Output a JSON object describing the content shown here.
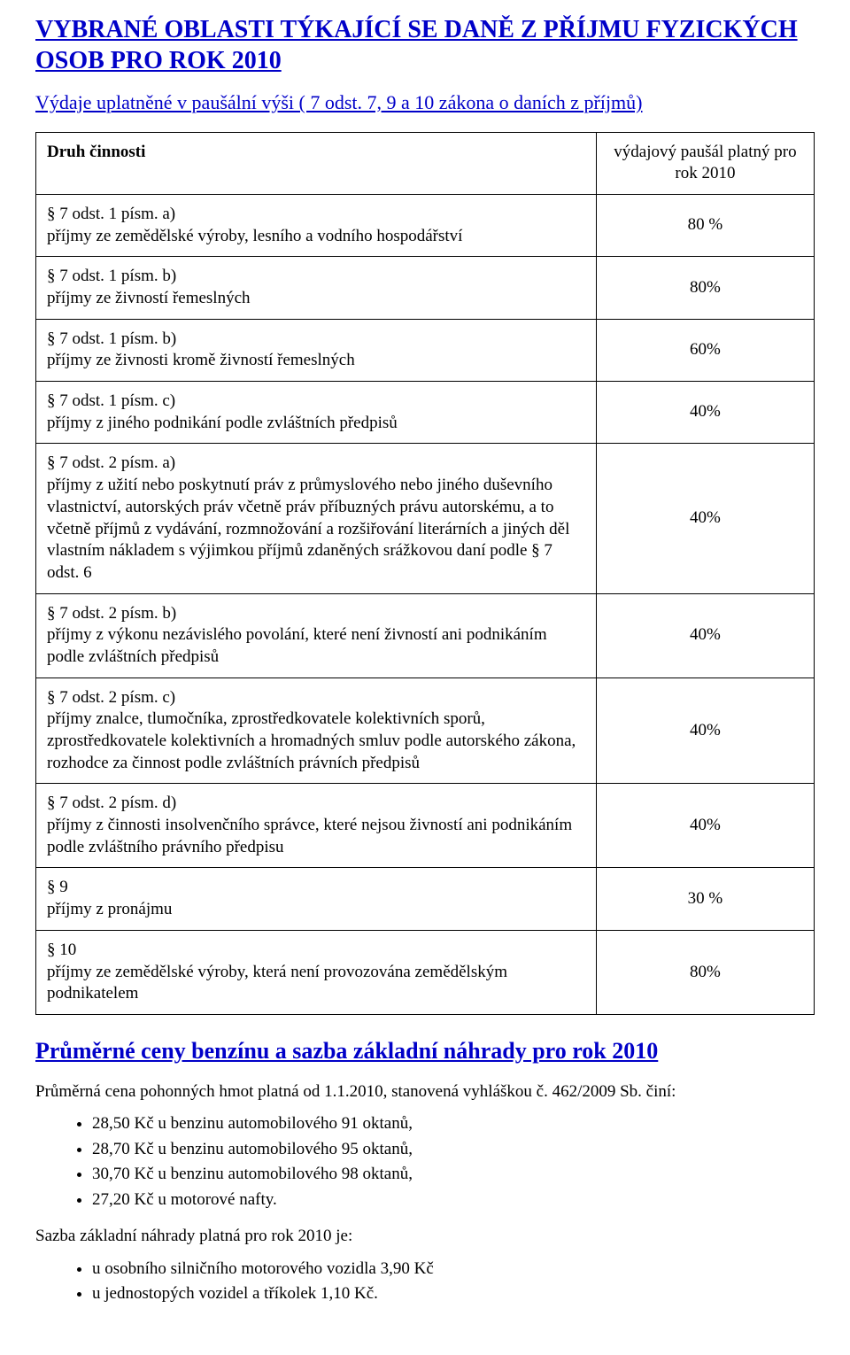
{
  "colors": {
    "heading": "#0000c8",
    "text": "#000000",
    "border": "#000000",
    "background": "#ffffff"
  },
  "typography": {
    "family": "Times New Roman",
    "title_fontsize_pt": 21,
    "subheading_fontsize_pt": 17,
    "section_heading_fontsize_pt": 20,
    "body_fontsize_pt": 14
  },
  "title": "VYBRANÉ OBLASTI TÝKAJÍCÍ SE DANĚ Z PŘÍJMU FYZICKÝCH OSOB PRO ROK 2010",
  "subheading": "Výdaje uplatněné v paušální výši ( 7 odst. 7, 9 a 10 zákona o daních z příjmů)",
  "table": {
    "type": "table",
    "columns": [
      "Druh činnosti",
      "výdajový paušál platný pro rok 2010"
    ],
    "column_widths_pct": [
      72,
      28
    ],
    "border_color": "#000000",
    "row_align": [
      "left",
      "center"
    ],
    "rows": [
      {
        "desc": "§ 7 odst. 1 písm. a)\npříjmy ze zemědělské výroby, lesního a vodního hospodářství",
        "value": "80 %"
      },
      {
        "desc": "§ 7 odst. 1 písm. b)\npříjmy ze živností řemeslných",
        "value": "80%"
      },
      {
        "desc": "§ 7 odst. 1 písm. b)\npříjmy ze živnosti kromě živností řemeslných",
        "value": "60%"
      },
      {
        "desc": "§ 7 odst. 1 písm. c)\npříjmy z jiného podnikání podle zvláštních předpisů",
        "value": "40%"
      },
      {
        "desc": "§ 7 odst. 2 písm. a)\npříjmy z užití nebo poskytnutí práv z průmyslového nebo jiného duševního vlastnictví, autorských práv včetně práv příbuzných právu autorskému, a to včetně příjmů z vydávání, rozmnožování a rozšiřování literárních a jiných děl vlastním nákladem s výjimkou příjmů zdaněných srážkovou daní podle § 7 odst. 6",
        "value": "40%"
      },
      {
        "desc": "§ 7 odst. 2 písm. b)\npříjmy z výkonu nezávislého povolání, které není živností ani podnikáním podle zvláštních předpisů",
        "value": "40%"
      },
      {
        "desc": "§ 7 odst. 2 písm. c)\npříjmy znalce, tlumočníka, zprostředkovatele kolektivních sporů, zprostředkovatele kolektivních a hromadných smluv podle autorského zákona, rozhodce za činnost podle zvláštních právních předpisů",
        "value": "40%"
      },
      {
        "desc": "§ 7 odst. 2 písm. d)\npříjmy z činnosti insolvenčního správce, které nejsou živností ani podnikáním podle zvláštního právního předpisu",
        "value": "40%"
      },
      {
        "desc": "§ 9\npříjmy z pronájmu",
        "value": "30 %"
      },
      {
        "desc": "§ 10\npříjmy ze zemědělské výroby, která není provozována zemědělským podnikatelem",
        "value": "80%"
      }
    ]
  },
  "section2": {
    "heading": "Průměrné ceny benzínu a sazba základní náhrady pro rok 2010",
    "intro": "Průměrná  cena pohonných hmot platná od 1.1.2010, stanovená vyhláškou č. 462/2009 Sb. činí:",
    "fuel_list": [
      "28,50 Kč u benzinu automobilového 91 oktanů,",
      "28,70 Kč u benzinu automobilového 95 oktanů,",
      "30,70 Kč u benzinu automobilového 98 oktanů,",
      "27,20 Kč u motorové nafty."
    ],
    "rate_intro": "Sazba základní náhrady platná pro rok 2010 je:",
    "rate_list": [
      "u osobního silničního motorového vozidla 3,90 Kč",
      "u jednostopých vozidel a tříkolek 1,10 Kč."
    ]
  }
}
